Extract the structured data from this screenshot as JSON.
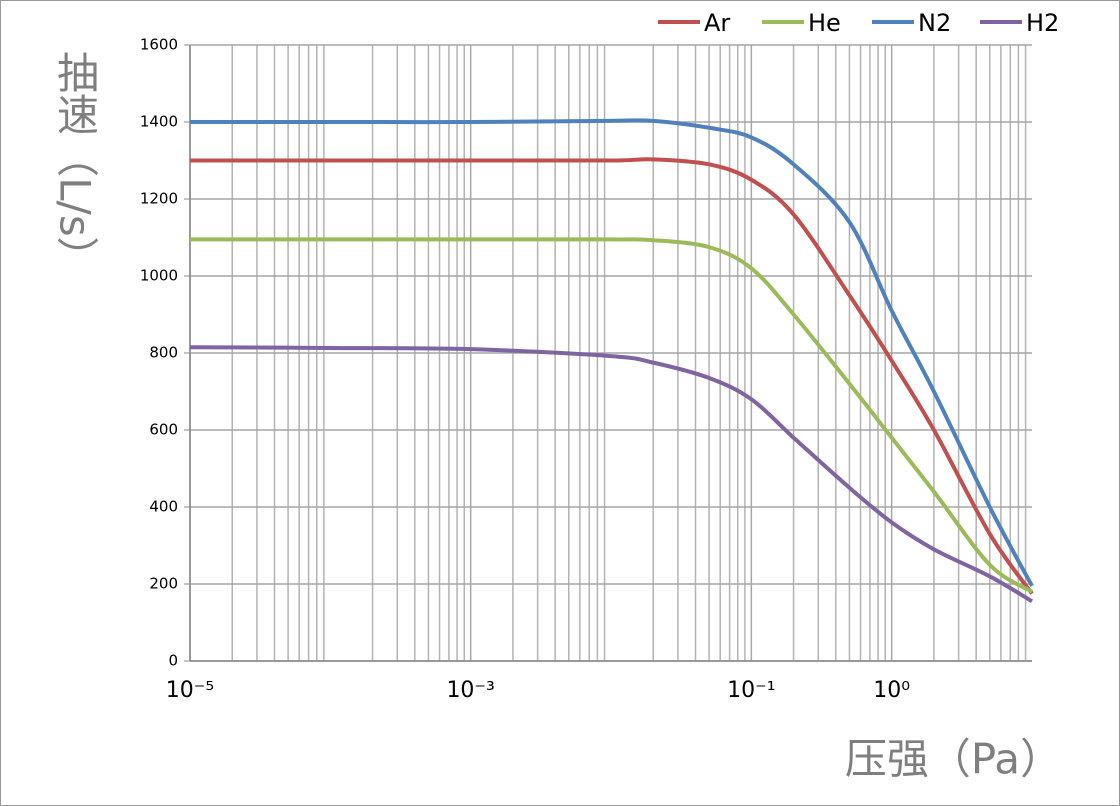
{
  "chart_data": {
    "type": "line",
    "y_label": "抽速（L/s）",
    "x_label": "压强（Pa）",
    "x": [
      1e-05,
      0.0001,
      0.001,
      0.01,
      0.02,
      0.05,
      0.1,
      0.2,
      0.5,
      1,
      2,
      5,
      10
    ],
    "series": [
      {
        "name": "Ar",
        "color": "#c0504d",
        "values": [
          1300,
          1300,
          1300,
          1300,
          1303,
          1290,
          1250,
          1160,
          950,
          780,
          600,
          330,
          175
        ]
      },
      {
        "name": "He",
        "color": "#9bbb59",
        "values": [
          1095,
          1095,
          1095,
          1095,
          1093,
          1075,
          1020,
          900,
          720,
          580,
          440,
          250,
          180
        ]
      },
      {
        "name": "N2",
        "color": "#4f81bd",
        "values": [
          1400,
          1400,
          1400,
          1403,
          1403,
          1385,
          1360,
          1290,
          1140,
          910,
          700,
          400,
          195
        ]
      },
      {
        "name": "H2",
        "color": "#8064a2",
        "values": [
          815,
          813,
          810,
          792,
          775,
          735,
          680,
          580,
          450,
          360,
          290,
          220,
          155
        ]
      }
    ],
    "xscale": "log",
    "xlim": [
      1e-05,
      10
    ],
    "xticks": [
      {
        "value": 1e-05,
        "label": "10⁻⁵"
      },
      {
        "value": 0.001,
        "label": "10⁻³"
      },
      {
        "value": 0.1,
        "label": "10⁻¹"
      },
      {
        "value": 1,
        "label": "10⁰"
      }
    ],
    "ylim": [
      0,
      1600
    ],
    "yticks": [
      0,
      200,
      400,
      600,
      800,
      1000,
      1200,
      1400,
      1600
    ],
    "grid": true,
    "legend": "top-right"
  }
}
